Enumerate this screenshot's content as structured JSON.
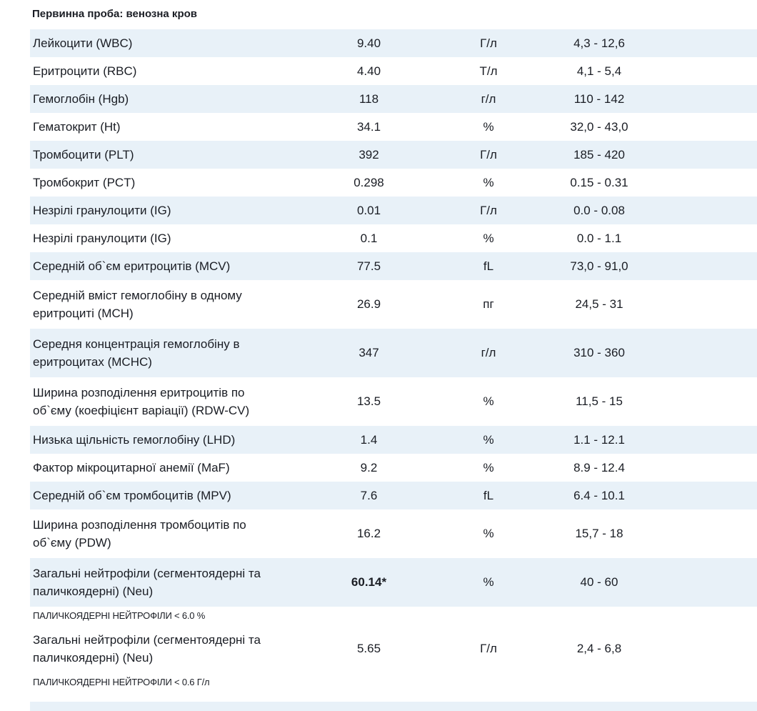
{
  "title": "Первинна проба: венозна кров",
  "colors": {
    "row_shade": "#e8f1f8",
    "text": "#1a1d24",
    "background": "#ffffff"
  },
  "table": {
    "columns": [
      "parameter",
      "value",
      "unit",
      "reference_range"
    ],
    "rows": [
      {
        "name": "Лейкоцити (WBC)",
        "value": "9.40",
        "unit": "Г/л",
        "range": "4,3 - 12,6",
        "shaded": true,
        "two_line": false,
        "value_bold": false
      },
      {
        "name": "Еритроцити (RBC)",
        "value": "4.40",
        "unit": "Т/л",
        "range": "4,1 - 5,4",
        "shaded": false,
        "two_line": false,
        "value_bold": false
      },
      {
        "name": "Гемоглобін (Hgb)",
        "value": "118",
        "unit": "г/л",
        "range": "110 - 142",
        "shaded": true,
        "two_line": false,
        "value_bold": false
      },
      {
        "name": "Гематокрит (Ht)",
        "value": "34.1",
        "unit": "%",
        "range": "32,0 - 43,0",
        "shaded": false,
        "two_line": false,
        "value_bold": false
      },
      {
        "name": "Тромбоцити (PLT)",
        "value": "392",
        "unit": "Г/л",
        "range": "185 - 420",
        "shaded": true,
        "two_line": false,
        "value_bold": false
      },
      {
        "name": "Тромбокрит (PCT)",
        "value": "0.298",
        "unit": "%",
        "range": "0.15 - 0.31",
        "shaded": false,
        "two_line": false,
        "value_bold": false
      },
      {
        "name": "Незрілі гранулоцити (IG)",
        "value": "0.01",
        "unit": "Г/л",
        "range": "0.0 - 0.08",
        "shaded": true,
        "two_line": false,
        "value_bold": false
      },
      {
        "name": "Незрілі гранулоцити (IG)",
        "value": "0.1",
        "unit": "%",
        "range": "0.0 - 1.1",
        "shaded": false,
        "two_line": false,
        "value_bold": false
      },
      {
        "name": "Середній об`єм еритроцитів (MCV)",
        "value": "77.5",
        "unit": "fL",
        "range": "73,0 - 91,0",
        "shaded": true,
        "two_line": false,
        "value_bold": false
      },
      {
        "name": "Середній вміст гемоглобіну в одному еритроциті (MCH)",
        "value": "26.9",
        "unit": "пг",
        "range": "24,5 - 31",
        "shaded": false,
        "two_line": true,
        "value_bold": false
      },
      {
        "name": "Середня концентрація гемоглобіну в еритроцитах (MCHC)",
        "value": "347",
        "unit": "г/л",
        "range": "310 - 360",
        "shaded": true,
        "two_line": true,
        "value_bold": false
      },
      {
        "name": "Ширина розподілення еритроцитів по об`єму (коефіцієнт варіації) (RDW-CV)",
        "value": "13.5",
        "unit": "%",
        "range": "11,5 - 15",
        "shaded": false,
        "two_line": true,
        "value_bold": false
      },
      {
        "name": "Низька щільність гемоглобіну (LHD)",
        "value": "1.4",
        "unit": "%",
        "range": "1.1 - 12.1",
        "shaded": true,
        "two_line": false,
        "value_bold": false
      },
      {
        "name": "Фактор мікроцитарної анемії (MaF)",
        "value": "9.2",
        "unit": "%",
        "range": "8.9 - 12.4",
        "shaded": false,
        "two_line": false,
        "value_bold": false
      },
      {
        "name": "Середній об`єм тромбоцитів (MPV)",
        "value": "7.6",
        "unit": "fL",
        "range": "6.4 - 10.1",
        "shaded": true,
        "two_line": false,
        "value_bold": false
      },
      {
        "name": "Ширина розподілення тромбоцитів по об`єму (PDW)",
        "value": "16.2",
        "unit": "%",
        "range": "15,7 - 18",
        "shaded": false,
        "two_line": true,
        "value_bold": false
      },
      {
        "name": "Загальні нейтрофіли (сегментоядерні та паличкоядерні) (Neu)",
        "value": "60.14*",
        "unit": "%",
        "range": "40 - 60",
        "shaded": true,
        "two_line": true,
        "value_bold": true,
        "note": "ПАЛИЧКОЯДЕРНІ НЕЙТРОФІЛИ < 6.0 %"
      },
      {
        "name": "Загальні нейтрофіли (сегментоядерні та паличкоядерні) (Neu)",
        "value": "5.65",
        "unit": "Г/л",
        "range": "2,4 - 6,8",
        "shaded": false,
        "two_line": true,
        "value_bold": false,
        "note": "ПАЛИЧКОЯДЕРНІ НЕЙТРОФІЛИ < 0.6 Г/л"
      }
    ],
    "partial_next_row_visible": true
  }
}
